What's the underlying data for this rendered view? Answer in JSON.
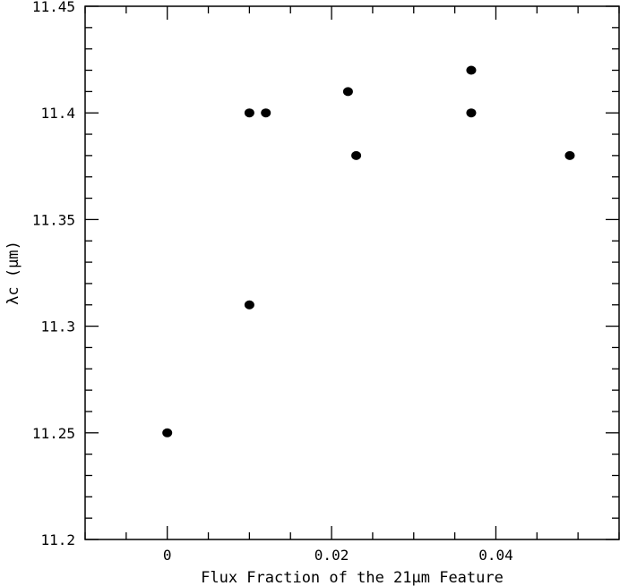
{
  "chart_data": {
    "type": "scatter",
    "xlabel": "Flux Fraction of the 21μm Feature",
    "ylabel": "λc (μm)",
    "xlim": [
      -0.01,
      0.055
    ],
    "ylim": [
      11.2,
      11.45
    ],
    "x_major_ticks": [
      0,
      0.02,
      0.04
    ],
    "x_tick_labels": [
      "0",
      "0.02",
      "0.04"
    ],
    "x_minor_step": 0.005,
    "y_major_ticks": [
      11.2,
      11.25,
      11.3,
      11.35,
      11.4,
      11.45
    ],
    "y_tick_labels": [
      "11.2",
      "11.25",
      "11.3",
      "11.35",
      "11.4",
      "11.45"
    ],
    "y_minor_step": 0.01,
    "grid": false,
    "marker_color": "#000000",
    "points": [
      {
        "x": 0.0,
        "y": 11.25
      },
      {
        "x": 0.01,
        "y": 11.31
      },
      {
        "x": 0.01,
        "y": 11.4
      },
      {
        "x": 0.012,
        "y": 11.4
      },
      {
        "x": 0.022,
        "y": 11.41
      },
      {
        "x": 0.023,
        "y": 11.38
      },
      {
        "x": 0.037,
        "y": 11.42
      },
      {
        "x": 0.037,
        "y": 11.4
      },
      {
        "x": 0.049,
        "y": 11.38
      }
    ]
  }
}
